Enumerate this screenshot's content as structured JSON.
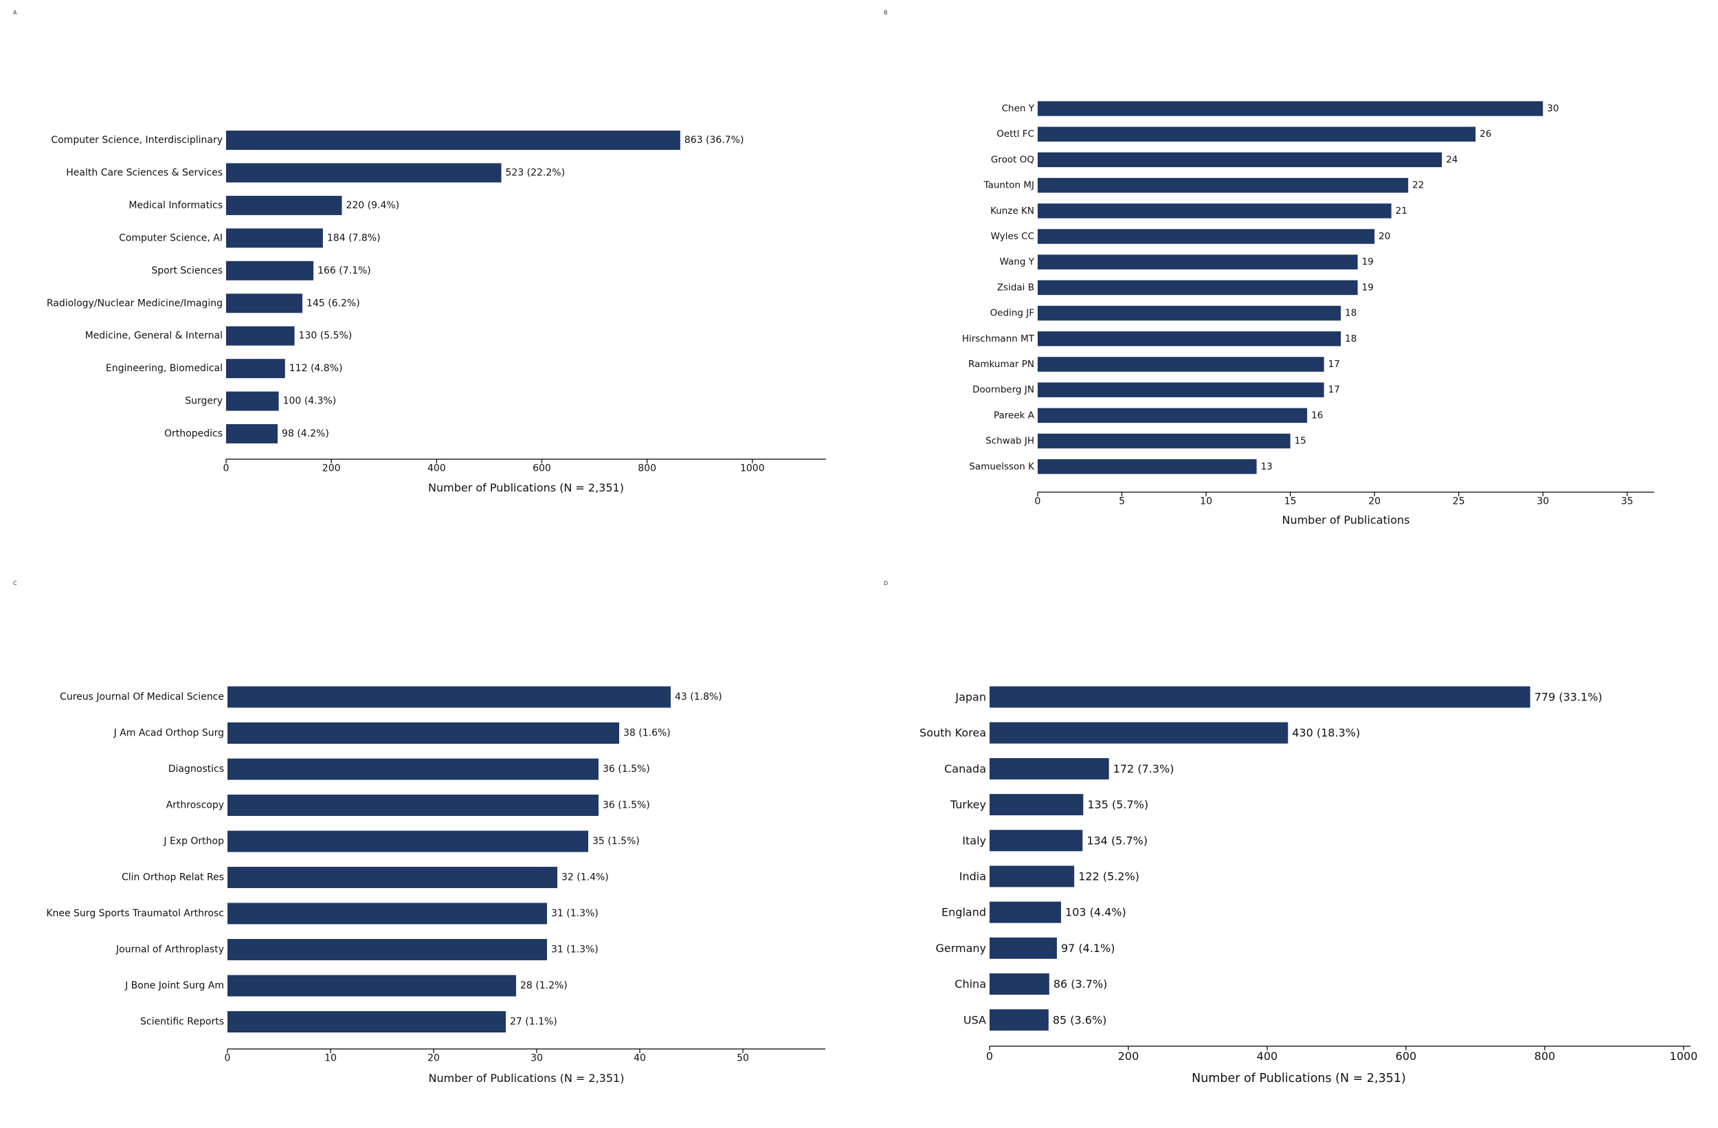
{
  "bar_color": "#1f3864",
  "chart_data": [
    {
      "id": "A",
      "type": "bar",
      "orientation": "horizontal",
      "panel_label": "A",
      "categories": [
        "Computer Science, Interdisciplinary",
        "Health Care Sciences & Services",
        "Medical Informatics",
        "Computer Science, AI",
        "Sport Sciences",
        "Radiology/Nuclear Medicine/Imaging",
        "Medicine, General & Internal",
        "Engineering, Biomedical",
        "Surgery",
        "Orthopedics"
      ],
      "values": [
        863,
        523,
        220,
        184,
        166,
        145,
        130,
        112,
        100,
        98
      ],
      "data_labels": [
        "863 (36.7%)",
        "523 (22.2%)",
        "220 (9.4%)",
        "184 (7.8%)",
        "166 (7.1%)",
        "145 (6.2%)",
        "130 (5.5%)",
        "112 (4.8%)",
        "100 (4.3%)",
        "98 (4.2%)"
      ],
      "xlabel": "Number of Publications (N = 2,351)",
      "ylabel": "",
      "xlim": [
        0,
        1140
      ],
      "xticks": [
        0,
        200,
        400,
        600,
        800,
        1000
      ],
      "grid": false
    },
    {
      "id": "B",
      "type": "bar",
      "orientation": "horizontal",
      "panel_label": "B",
      "categories": [
        "Chen Y",
        "Oettl FC",
        "Groot OQ",
        "Taunton MJ",
        "Kunze KN",
        "Wyles CC",
        "Wang Y",
        "Zsidai B",
        "Oeding JF",
        "Hirschmann MT",
        "Ramkumar PN",
        "Doornberg JN",
        "Pareek A",
        "Schwab JH",
        "Samuelsson K"
      ],
      "values": [
        30,
        26,
        24,
        22,
        21,
        20,
        19,
        19,
        18,
        18,
        17,
        17,
        16,
        15,
        13
      ],
      "data_labels": [
        "30",
        "26",
        "24",
        "22",
        "21",
        "20",
        "19",
        "19",
        "18",
        "18",
        "17",
        "17",
        "16",
        "15",
        "13"
      ],
      "xlabel": "Number of Publications",
      "ylabel": "",
      "xlim": [
        0,
        36.6
      ],
      "xticks": [
        0,
        5,
        10,
        15,
        20,
        25,
        30,
        35
      ],
      "grid": false
    },
    {
      "id": "C",
      "type": "bar",
      "orientation": "horizontal",
      "panel_label": "C",
      "categories": [
        "Cureus Journal Of Medical Science",
        "J Am Acad Orthop Surg",
        "Diagnostics",
        "Arthroscopy",
        "J Exp Orthop",
        "Clin Orthop Relat Res",
        "Knee Surg Sports Traumatol Arthrosc",
        "Journal of Arthroplasty",
        "J Bone Joint Surg Am",
        "Scientific Reports"
      ],
      "values": [
        43,
        38,
        36,
        36,
        35,
        32,
        31,
        31,
        28,
        27
      ],
      "data_labels": [
        "43 (1.8%)",
        "38 (1.6%)",
        "36 (1.5%)",
        "36 (1.5%)",
        "35 (1.5%)",
        "32 (1.4%)",
        "31 (1.3%)",
        "31 (1.3%)",
        "28 (1.2%)",
        "27 (1.1%)"
      ],
      "xlabel": "Number of Publications (N = 2,351)",
      "ylabel": "",
      "xlim": [
        0,
        58
      ],
      "xticks": [
        0,
        10,
        20,
        30,
        40,
        50
      ],
      "grid": false
    },
    {
      "id": "D",
      "type": "bar",
      "orientation": "horizontal",
      "panel_label": "D",
      "categories": [
        "Japan",
        "South Korea",
        "Canada",
        "Turkey",
        "Italy",
        "India",
        "England",
        "Germany",
        "China",
        "USA"
      ],
      "values": [
        779,
        430,
        172,
        135,
        134,
        122,
        103,
        97,
        86,
        85
      ],
      "data_labels": [
        "779 (33.1%)",
        "430 (18.3%)",
        "172 (7.3%)",
        "135 (5.7%)",
        "134 (5.7%)",
        "122 (5.2%)",
        "103 (4.4%)",
        "97 (4.1%)",
        "86 (3.7%)",
        "85 (3.6%)"
      ],
      "xlabel": "Number of Publications (N = 2,351)",
      "ylabel": "",
      "xlim": [
        0,
        1010
      ],
      "xticks": [
        0,
        200,
        400,
        600,
        800,
        1000
      ],
      "grid": false
    }
  ]
}
